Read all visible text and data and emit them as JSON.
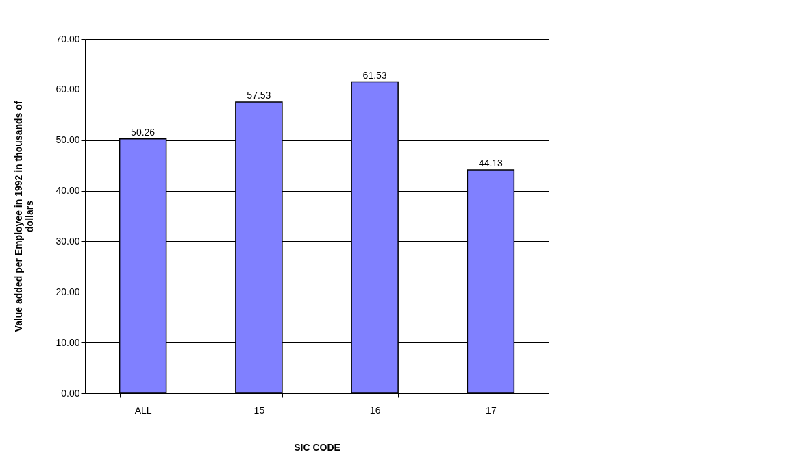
{
  "chart_data": {
    "type": "bar",
    "xlabel": "SIC CODE",
    "ylabel": "Value added per Employee in 1992 in thousands of dollars",
    "categories": [
      "ALL",
      "15",
      "16",
      "17"
    ],
    "values": [
      50.26,
      57.53,
      61.53,
      44.13
    ],
    "color": "#8080ff",
    "ylim": [
      0,
      70
    ],
    "yticks": [
      {
        "value": 0,
        "label": "0.00"
      },
      {
        "value": 10,
        "label": "10.00"
      },
      {
        "value": 20,
        "label": "20.00"
      },
      {
        "value": 30,
        "label": "30.00"
      },
      {
        "value": 40,
        "label": "40.00"
      },
      {
        "value": 50,
        "label": "50.00"
      },
      {
        "value": 60,
        "label": "60.00"
      },
      {
        "value": 70,
        "label": "70.00"
      }
    ],
    "grid": "y",
    "data_labels": true
  }
}
